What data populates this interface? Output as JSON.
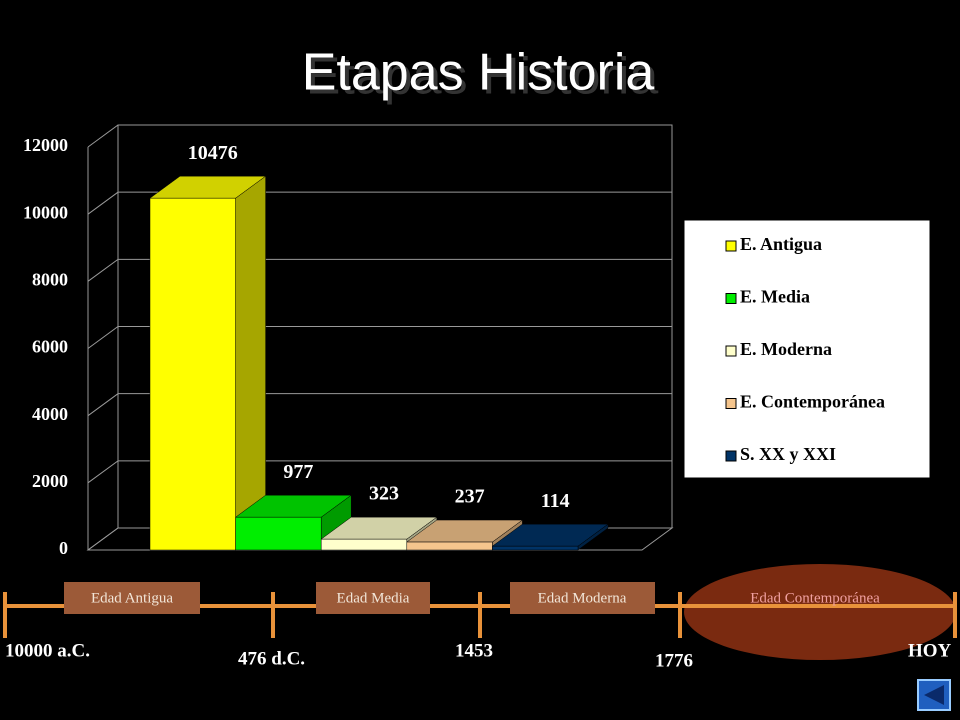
{
  "chart_data": {
    "type": "bar3d",
    "title": "Etapas Historia",
    "categories": [
      null
    ],
    "series": [
      {
        "name": "E. Antigua",
        "color": "#ffff00",
        "values": [
          10476
        ]
      },
      {
        "name": "E. Media",
        "color": "#00ee00",
        "values": [
          977
        ]
      },
      {
        "name": "E. Moderna",
        "color": "#ffffcc",
        "values": [
          323
        ]
      },
      {
        "name": "E. Contemporánea",
        "color": "#f5c58d",
        "values": [
          237
        ]
      },
      {
        "name": "S. XX y XXI",
        "color": "#003366",
        "values": [
          114
        ]
      }
    ],
    "ylim": [
      0,
      12000
    ],
    "yticks": [
      0,
      2000,
      4000,
      6000,
      8000,
      10000,
      12000
    ],
    "grid": true,
    "legend": "right"
  },
  "timeline": {
    "periods": [
      "Edad Antigua",
      "Edad Media",
      "Edad Moderna",
      "Edad Contemporánea"
    ],
    "dates": [
      "10000 a.C.",
      "476 d.C.",
      "1453",
      "1776",
      "HOY"
    ]
  }
}
